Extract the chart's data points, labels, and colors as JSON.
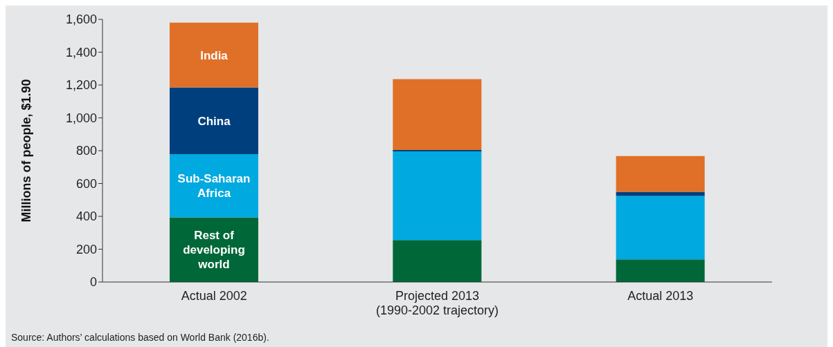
{
  "chart_data": {
    "type": "bar",
    "stacked": true,
    "ylabel": "Millions of people, $1.90",
    "categories": [
      "Actual 2002",
      "Projected 2013 (1990-2002 trajectory)",
      "Actual 2013"
    ],
    "series": [
      {
        "name": "Rest of developing world",
        "color": "#006838",
        "values": [
          394,
          256,
          138
        ]
      },
      {
        "name": "Sub-Saharan Africa",
        "color": "#00a9e0",
        "values": [
          385,
          540,
          386
        ]
      },
      {
        "name": "China",
        "color": "#003f7d",
        "values": [
          406,
          8,
          25
        ]
      },
      {
        "name": "India",
        "color": "#e07028",
        "values": [
          395,
          432,
          218
        ]
      }
    ],
    "ylim": [
      0,
      1600
    ],
    "yticks": [
      0,
      200,
      400,
      600,
      800,
      {
        "value": 1000,
        "label": "1,000"
      },
      {
        "value": 1200,
        "label": "1,200"
      },
      {
        "value": 1400,
        "label": "1,400"
      },
      {
        "value": 1600,
        "label": "1,600"
      }
    ],
    "annotations": [
      "Source: Authors’ calculations based on World Bank (2016b)."
    ]
  }
}
